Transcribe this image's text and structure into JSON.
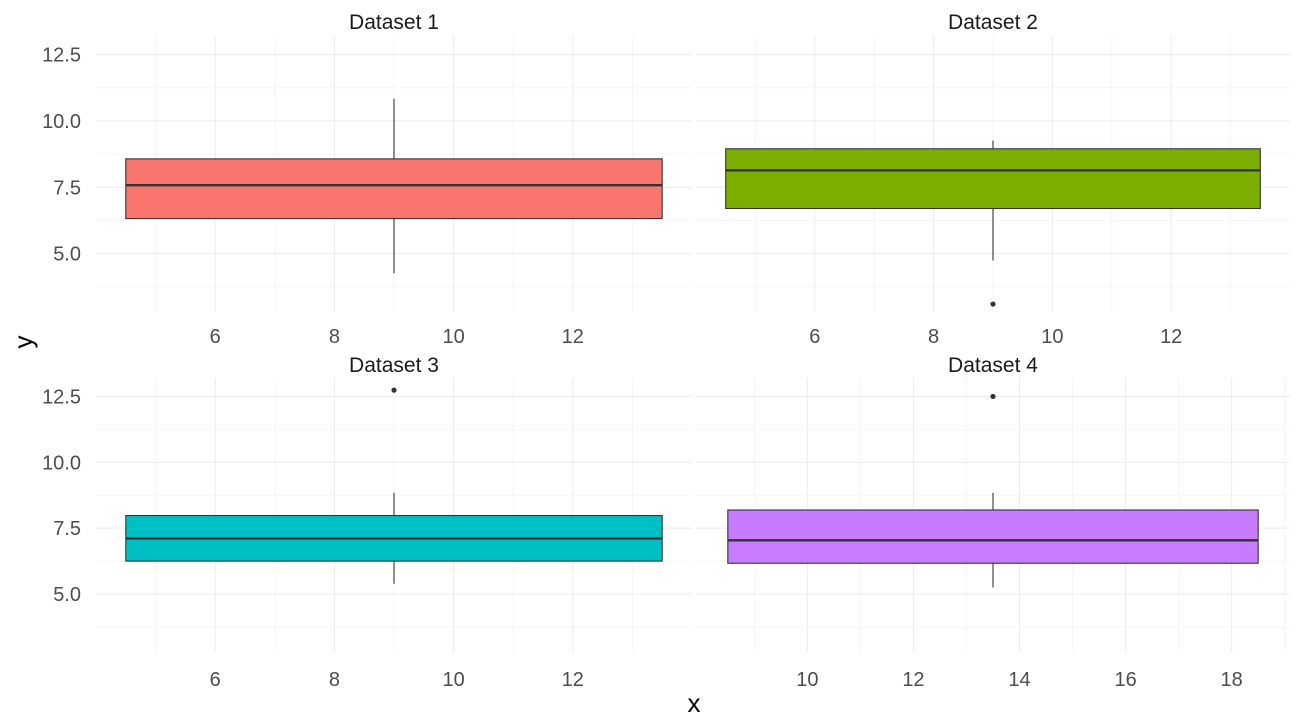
{
  "chart_data": {
    "type": "boxplot",
    "xlabel": "x",
    "ylabel": "y",
    "panels": [
      {
        "name": "Dataset 1",
        "color": "#F8766D",
        "x_center": 9,
        "box_x_range": [
          4.5,
          13.5
        ],
        "xlim": [
          4.0,
          14.0
        ],
        "x_ticks": [
          6,
          8,
          10,
          12
        ],
        "ylim": [
          2.8,
          13.2
        ],
        "y_ticks": [
          5.0,
          7.5,
          10.0,
          12.5
        ],
        "y_tick_labels": [
          "5.0",
          "7.5",
          "10.0",
          "12.5"
        ],
        "stats": {
          "lower_whisker": 4.26,
          "q1": 6.32,
          "median": 7.58,
          "q3": 8.57,
          "upper_whisker": 10.84
        },
        "outliers": []
      },
      {
        "name": "Dataset 2",
        "color": "#7CAE00",
        "x_center": 9,
        "box_x_range": [
          4.5,
          13.5
        ],
        "xlim": [
          4.0,
          14.0
        ],
        "x_ticks": [
          6,
          8,
          10,
          12
        ],
        "ylim": [
          2.8,
          13.2
        ],
        "y_ticks": [
          5.0,
          7.5,
          10.0,
          12.5
        ],
        "y_tick_labels": [
          "5.0",
          "7.5",
          "10.0",
          "12.5"
        ],
        "stats": {
          "lower_whisker": 4.74,
          "q1": 6.7,
          "median": 8.14,
          "q3": 8.95,
          "upper_whisker": 9.26
        },
        "outliers": [
          3.1
        ]
      },
      {
        "name": "Dataset 3",
        "color": "#00BFC4",
        "x_center": 9,
        "box_x_range": [
          4.5,
          13.5
        ],
        "xlim": [
          4.0,
          14.0
        ],
        "x_ticks": [
          6,
          8,
          10,
          12
        ],
        "ylim": [
          2.8,
          13.2
        ],
        "y_ticks": [
          5.0,
          7.5,
          10.0,
          12.5
        ],
        "y_tick_labels": [
          "5.0",
          "7.5",
          "10.0",
          "12.5"
        ],
        "stats": {
          "lower_whisker": 5.39,
          "q1": 6.25,
          "median": 7.11,
          "q3": 7.98,
          "upper_whisker": 8.84
        },
        "outliers": [
          12.74
        ]
      },
      {
        "name": "Dataset 4",
        "color": "#C77CFF",
        "x_center": 13.5,
        "box_x_range": [
          8.5,
          18.5
        ],
        "xlim": [
          7.9,
          19.1
        ],
        "x_ticks": [
          10,
          12,
          14,
          16,
          18
        ],
        "ylim": [
          2.8,
          13.2
        ],
        "y_ticks": [
          5.0,
          7.5,
          10.0,
          12.5
        ],
        "y_tick_labels": [
          "5.0",
          "7.5",
          "10.0",
          "12.5"
        ],
        "stats": {
          "lower_whisker": 5.25,
          "q1": 6.17,
          "median": 7.04,
          "q3": 8.19,
          "upper_whisker": 8.84
        },
        "outliers": [
          12.5
        ]
      }
    ]
  }
}
